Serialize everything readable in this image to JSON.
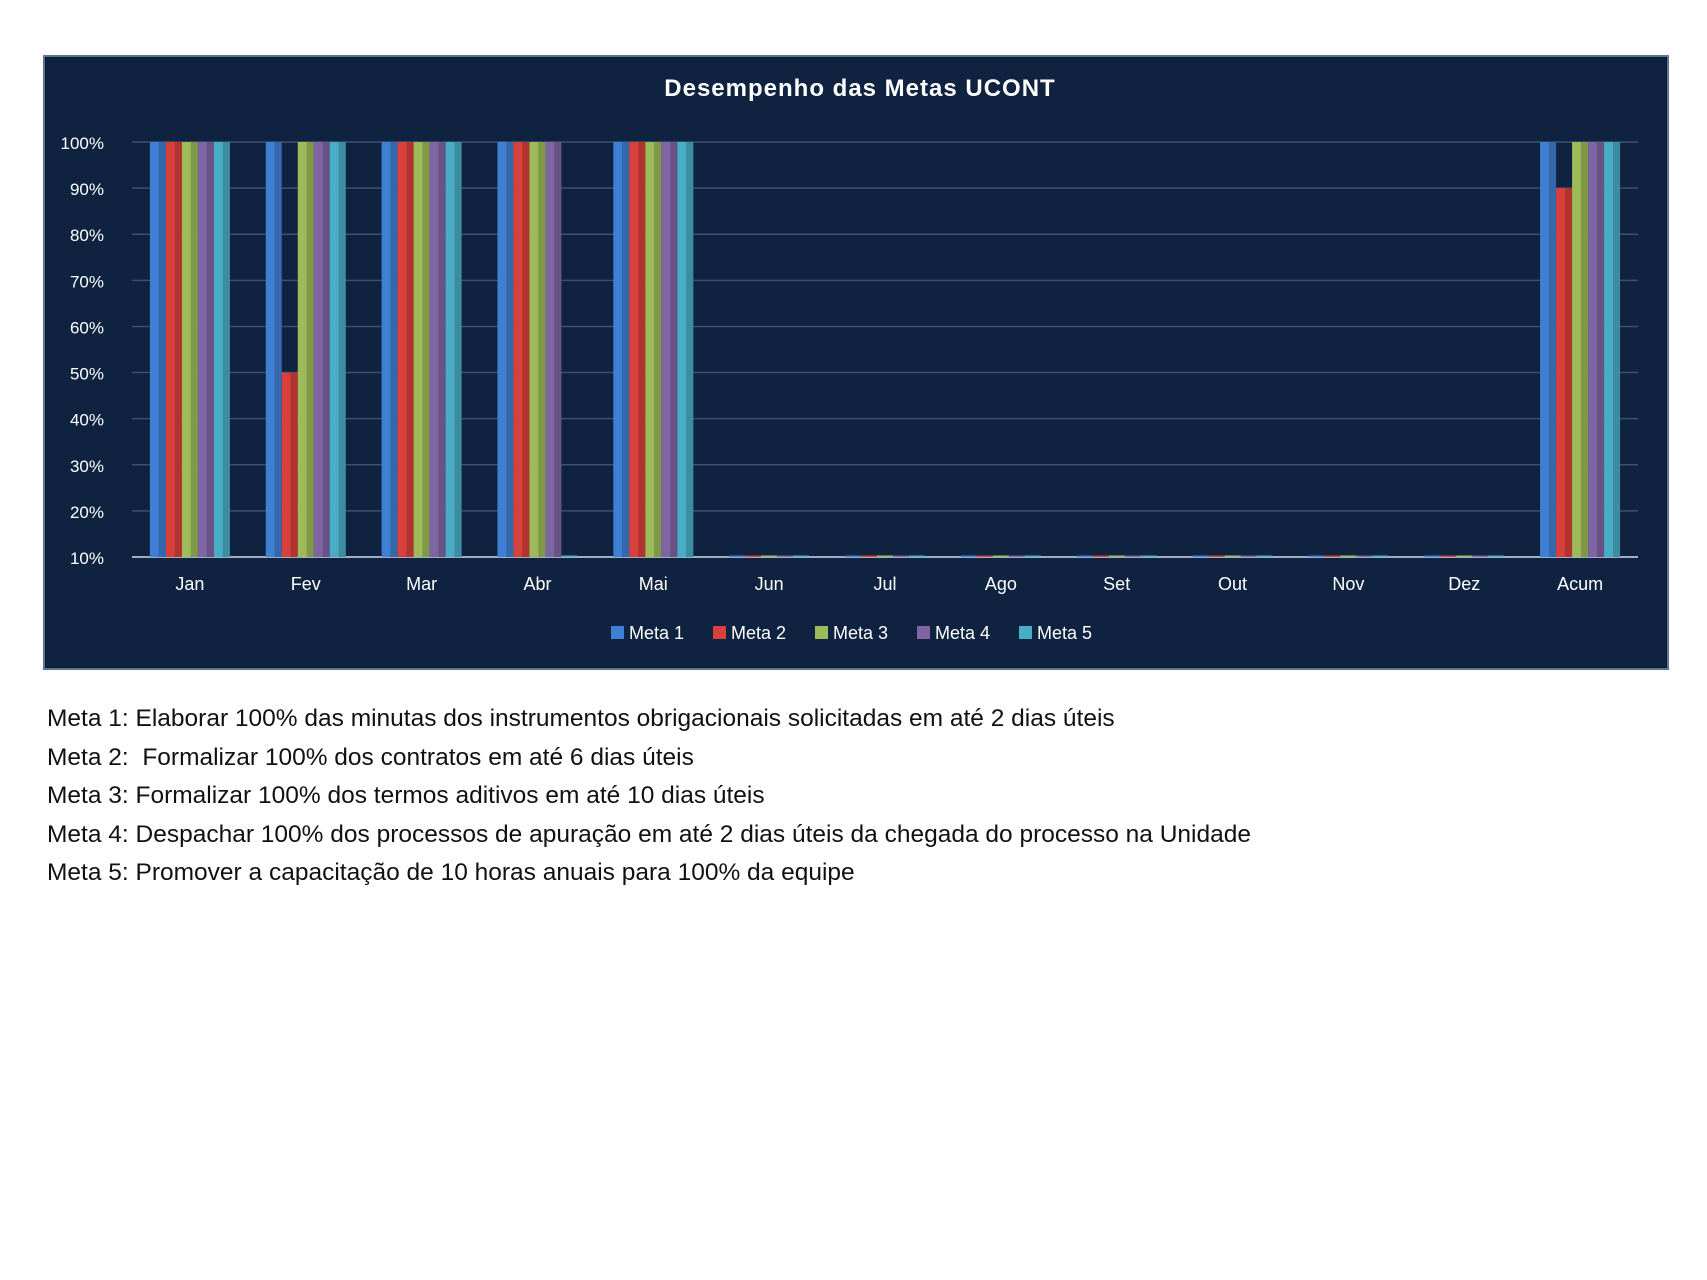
{
  "chart_data": {
    "type": "bar",
    "title": "Desempenho das Metas UCONT",
    "categories": [
      "Jan",
      "Fev",
      "Mar",
      "Abr",
      "Mai",
      "Jun",
      "Jul",
      "Ago",
      "Set",
      "Out",
      "Nov",
      "Dez",
      "Acum"
    ],
    "ylim": [
      0.1,
      1.0
    ],
    "y_ticks": [
      "10%",
      "20%",
      "30%",
      "40%",
      "50%",
      "60%",
      "70%",
      "80%",
      "90%",
      "100%"
    ],
    "grid": true,
    "legend_position": "bottom",
    "series": [
      {
        "name": "Meta 1",
        "color": "#3f7fd4",
        "values": [
          1.0,
          1.0,
          1.0,
          1.0,
          1.0,
          0.1,
          0.1,
          0.1,
          0.1,
          0.1,
          0.1,
          0.1,
          1.0
        ]
      },
      {
        "name": "Meta 2",
        "color": "#d8403b",
        "values": [
          1.0,
          0.5,
          1.0,
          1.0,
          1.0,
          0.1,
          0.1,
          0.1,
          0.1,
          0.1,
          0.1,
          0.1,
          0.9
        ]
      },
      {
        "name": "Meta 3",
        "color": "#9dbb59",
        "values": [
          1.0,
          1.0,
          1.0,
          1.0,
          1.0,
          0.1,
          0.1,
          0.1,
          0.1,
          0.1,
          0.1,
          0.1,
          1.0
        ]
      },
      {
        "name": "Meta 4",
        "color": "#8065a3",
        "values": [
          1.0,
          1.0,
          1.0,
          1.0,
          1.0,
          0.1,
          0.1,
          0.1,
          0.1,
          0.1,
          0.1,
          0.1,
          1.0
        ]
      },
      {
        "name": "Meta 5",
        "color": "#4aadc6",
        "values": [
          1.0,
          1.0,
          1.0,
          0.1,
          1.0,
          0.1,
          0.1,
          0.1,
          0.1,
          0.1,
          0.1,
          0.1,
          1.0
        ]
      }
    ]
  },
  "notes": [
    "Meta 1: Elaborar 100% das minutas dos instrumentos obrigacionais solicitadas em até 2 dias úteis",
    "Meta 2:  Formalizar 100% dos contratos em até 6 dias úteis",
    "Meta 3: Formalizar 100% dos termos aditivos em até 10 dias úteis",
    "Meta 4: Despachar 100% dos processos de apuração em até 2 dias úteis da chegada do processo na Unidade",
    "Meta 5: Promover a capacitação de 10 horas anuais para 100% da equipe"
  ]
}
